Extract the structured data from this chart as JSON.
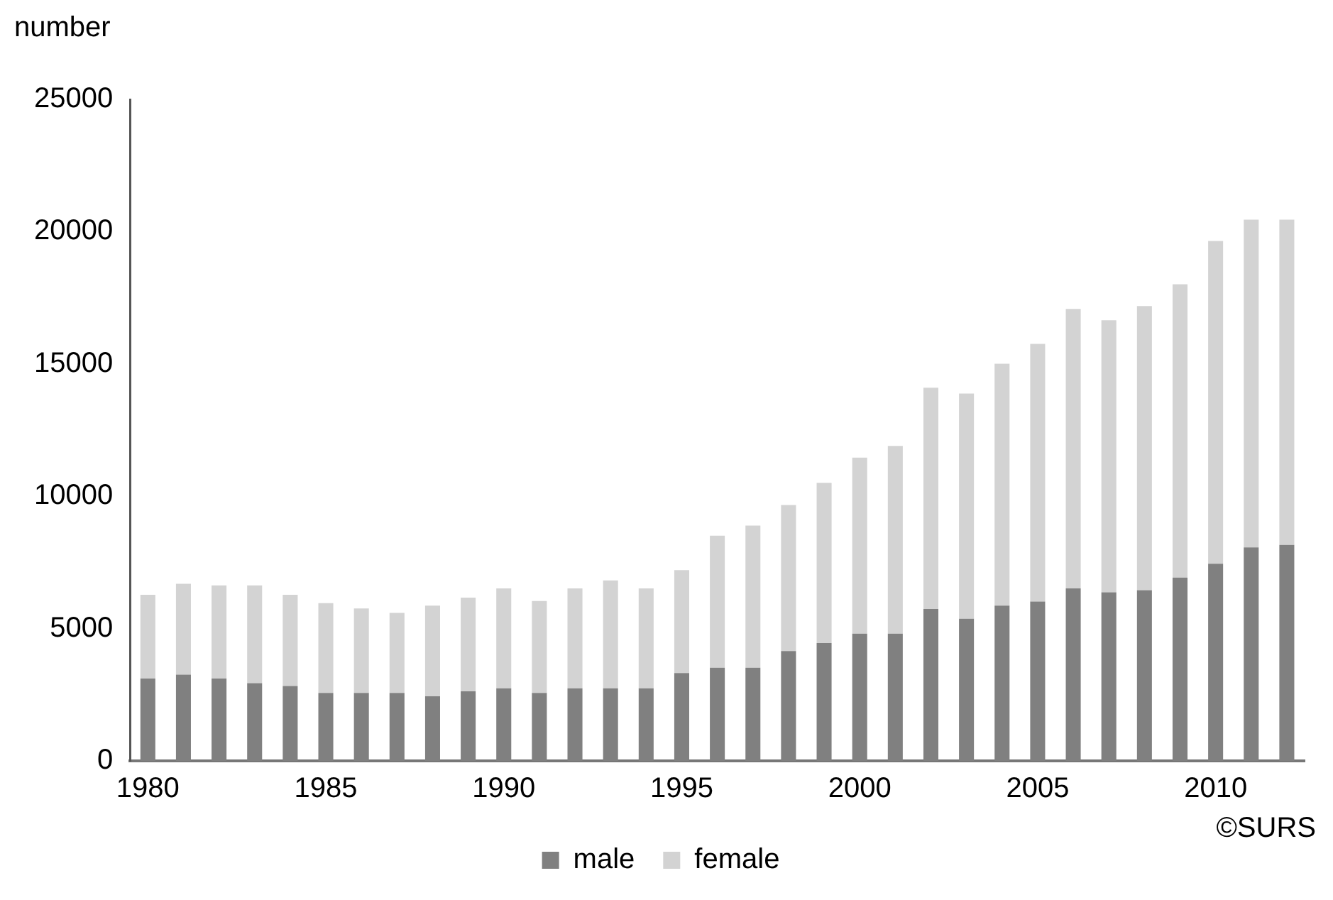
{
  "chart_data": {
    "type": "bar",
    "ylabel": "number",
    "stacked": true,
    "x": [
      1980,
      1981,
      1982,
      1983,
      1984,
      1985,
      1986,
      1987,
      1988,
      1989,
      1990,
      1991,
      1992,
      1993,
      1994,
      1995,
      1996,
      1997,
      1998,
      1999,
      2000,
      2001,
      2002,
      2003,
      2004,
      2005,
      2006,
      2007,
      2008,
      2009,
      2010,
      2011,
      2012
    ],
    "series": [
      {
        "name": "male",
        "color": "#808080",
        "values": [
          3110,
          3260,
          3110,
          2940,
          2830,
          2570,
          2570,
          2570,
          2440,
          2630,
          2740,
          2570,
          2740,
          2740,
          2740,
          3320,
          3520,
          3520,
          4150,
          4450,
          4810,
          4810,
          5740,
          5370,
          5870,
          6020,
          6520,
          6370,
          6450,
          6930,
          7450,
          8070,
          8160
        ]
      },
      {
        "name": "female",
        "color": "#d3d3d3",
        "values": [
          3170,
          3430,
          3520,
          3690,
          3450,
          3390,
          3190,
          3020,
          3430,
          3540,
          3780,
          3470,
          3780,
          4080,
          3780,
          3890,
          4990,
          5370,
          5520,
          6060,
          6650,
          7090,
          8360,
          8510,
          9140,
          9740,
          10560,
          10280,
          10740,
          11080,
          12200,
          12380,
          12290
        ]
      }
    ],
    "xlim": [
      1979.5,
      2012.5
    ],
    "xticks": [
      1980,
      1985,
      1990,
      1995,
      2000,
      2005,
      2010
    ],
    "ylim": [
      0,
      25000
    ],
    "yticks": [
      0,
      5000,
      10000,
      15000,
      20000,
      25000
    ],
    "grid": false,
    "legend": "bottom",
    "annotations": [
      "©SURS"
    ]
  }
}
